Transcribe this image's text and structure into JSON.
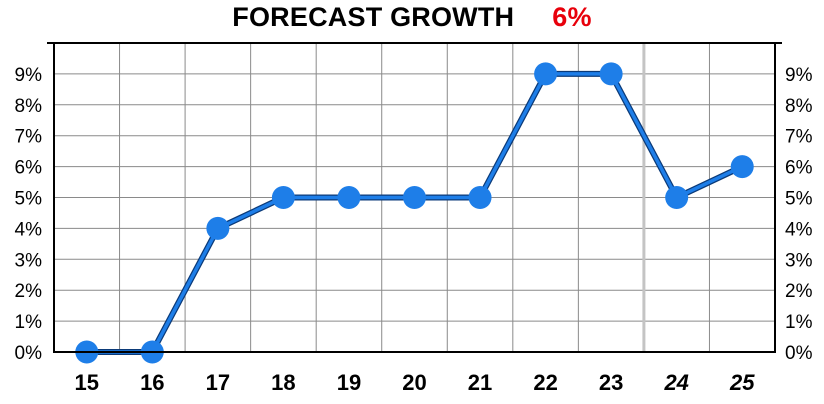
{
  "header": {
    "title": "FORECAST GROWTH",
    "highlight": "6%",
    "highlight_color": "#e8000b"
  },
  "chart_data": {
    "type": "line",
    "title": "FORECAST GROWTH",
    "xlabel": "",
    "ylabel": "",
    "categories": [
      "15",
      "16",
      "17",
      "18",
      "19",
      "20",
      "21",
      "22",
      "23",
      "24",
      "25"
    ],
    "forecast_categories": [
      "24",
      "25"
    ],
    "series": [
      {
        "values": [
          0,
          0,
          4,
          5,
          5,
          5,
          5,
          9,
          9,
          5,
          6
        ],
        "color": "#1e7ee8"
      }
    ],
    "y_ticks": [
      "0%",
      "1%",
      "2%",
      "3%",
      "4%",
      "5%",
      "6%",
      "7%",
      "8%",
      "9%"
    ],
    "ylim": [
      0,
      10
    ],
    "grid": true,
    "y_axis": "both sides"
  }
}
